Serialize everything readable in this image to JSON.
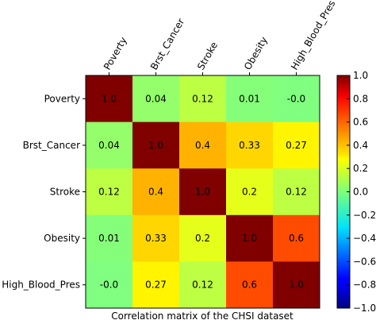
{
  "chart_data": {
    "type": "heatmap",
    "title": "",
    "xlabel": "Correlation matrix of the CHSI dataset",
    "ylabel": "",
    "rows": [
      "Poverty",
      "Brst_Cancer",
      "Stroke",
      "Obesity",
      "High_Blood_Pres"
    ],
    "columns": [
      "Poverty",
      "Brst_Cancer",
      "Stroke",
      "Obesity",
      "High_Blood_Pres"
    ],
    "values": [
      [
        1.0,
        0.04,
        0.12,
        0.01,
        -0.0
      ],
      [
        0.04,
        1.0,
        0.4,
        0.33,
        0.27
      ],
      [
        0.12,
        0.4,
        1.0,
        0.2,
        0.12
      ],
      [
        0.01,
        0.33,
        0.2,
        1.0,
        0.6
      ],
      [
        -0.0,
        0.27,
        0.12,
        0.6,
        1.0
      ]
    ],
    "value_labels": [
      [
        "1.0",
        "0.04",
        "0.12",
        "0.01",
        "-0.0"
      ],
      [
        "0.04",
        "1.0",
        "0.4",
        "0.33",
        "0.27"
      ],
      [
        "0.12",
        "0.4",
        "1.0",
        "0.2",
        "0.12"
      ],
      [
        "0.01",
        "0.33",
        "0.2",
        "1.0",
        "0.6"
      ],
      [
        "-0.0",
        "0.27",
        "0.12",
        "0.6",
        "1.0"
      ]
    ],
    "colormap": "jet",
    "vrange": [
      -1.0,
      1.0
    ],
    "colorbar_ticks": [
      1.0,
      0.8,
      0.6,
      0.4,
      0.2,
      0.0,
      -0.2,
      -0.4,
      -0.6,
      -0.8,
      -1.0
    ],
    "colorbar_tick_labels": [
      "1.0",
      "0.8",
      "0.6",
      "0.4",
      "0.2",
      "0.0",
      "−0.2",
      "−0.4",
      "−0.6",
      "−0.8",
      "−1.0"
    ],
    "x_tick_rotation": "diagonal",
    "grid": false,
    "legend": "colorbar-right"
  }
}
